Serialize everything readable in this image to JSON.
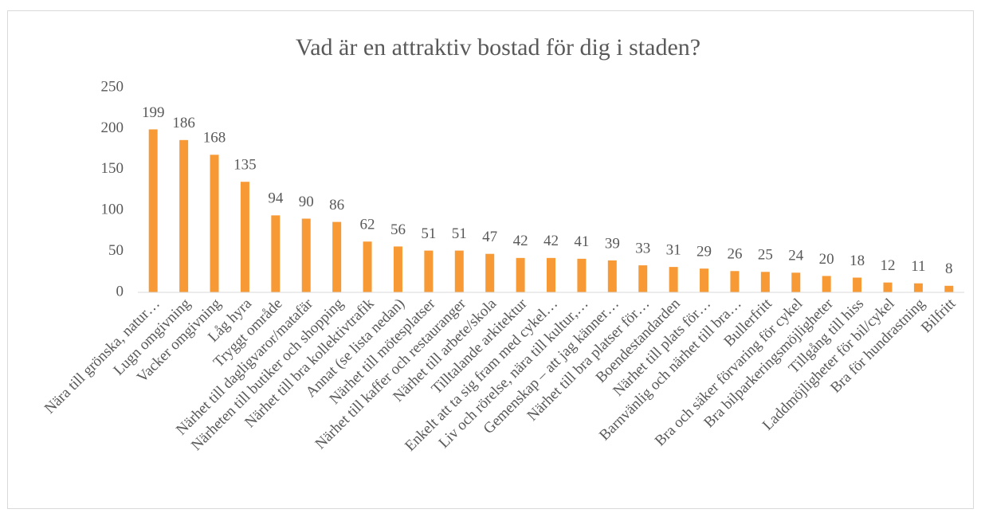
{
  "chart_data": {
    "type": "bar",
    "title": "Vad är en attraktiv bostad för dig i staden?",
    "categories": [
      "Nära till grönska, natur…",
      "Lugn omgivning",
      "Vacker omgivning",
      "Låg hyra",
      "Tryggt område",
      "Närhet till dagligvaror/matafär",
      "Närheten till butiker och shopping",
      "Närhet till bra kollektivtrafik",
      "Annat (se lista nedan)",
      "Närhet till mötesplatser",
      "Närhet till kaffer och restauranger",
      "Närhet till arbete/skola",
      "Tilltalande arkitektur",
      "Enkelt att ta sig fram med cykel…",
      "Liv och rörelse, nära till kultur,…",
      "Gemenskap – att jag känner…",
      "Närhet till bra platser för…",
      "Boendestandarden",
      "Närhet till plats för…",
      "Barnvänlig och närhet till bra…",
      "Bullerfritt",
      "Bra och säker förvaring för cykel",
      "Bra bilparkeringsmöjligheter",
      "Tillgång till hiss",
      "Laddmöjligheter för bil/cykel",
      "Bra för hundrastning",
      "Bilfritt"
    ],
    "values": [
      199,
      186,
      168,
      135,
      94,
      90,
      86,
      62,
      56,
      51,
      51,
      47,
      42,
      42,
      41,
      39,
      33,
      31,
      29,
      26,
      25,
      24,
      20,
      18,
      12,
      11,
      8
    ],
    "color": "#f79a35",
    "ylim": [
      0,
      250
    ],
    "yticks": [
      0,
      50,
      100,
      150,
      200,
      250
    ],
    "grid": false
  }
}
